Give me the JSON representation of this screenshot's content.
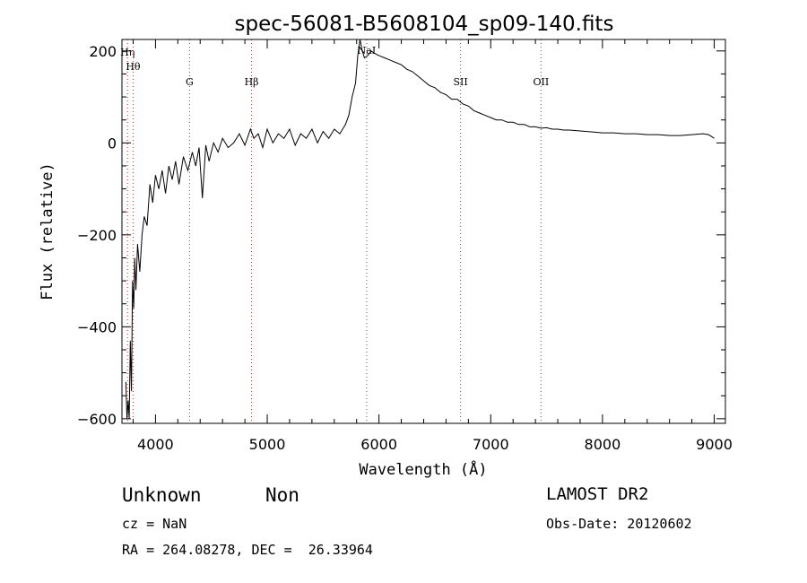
{
  "chart_data": {
    "type": "line",
    "title": "spec-56081-B5608104_sp09-140.fits",
    "xlabel": "Wavelength (Å)",
    "ylabel": "Flux (relative)",
    "xlim": [
      3700,
      9100
    ],
    "ylim": [
      -610,
      225
    ],
    "xticks": [
      4000,
      5000,
      6000,
      7000,
      8000,
      9000
    ],
    "yticks": [
      -600,
      -400,
      -200,
      0,
      200
    ],
    "grid": false,
    "line_color": "#000000",
    "marker_color": "#b03030",
    "series": [
      {
        "x": [
          3735,
          3745,
          3755,
          3765,
          3775,
          3785,
          3795,
          3805,
          3815,
          3825,
          3840,
          3860,
          3880,
          3900,
          3925,
          3950,
          3975,
          4000,
          4030,
          4060,
          4090,
          4120,
          4150,
          4180,
          4210,
          4250,
          4290,
          4330,
          4360,
          4390,
          4420,
          4450,
          4480,
          4520,
          4560,
          4600,
          4650,
          4700,
          4750,
          4800,
          4850,
          4880,
          4920,
          4960,
          5000,
          5050,
          5100,
          5150,
          5200,
          5250,
          5300,
          5350,
          5400,
          5450,
          5500,
          5550,
          5600,
          5650,
          5700,
          5730,
          5760,
          5790,
          5810,
          5830,
          5850,
          5870,
          5900,
          5930,
          5960,
          6000,
          6050,
          6100,
          6150,
          6200,
          6250,
          6300,
          6350,
          6400,
          6450,
          6500,
          6550,
          6600,
          6650,
          6700,
          6750,
          6800,
          6850,
          6900,
          6950,
          7000,
          7050,
          7100,
          7150,
          7200,
          7250,
          7300,
          7350,
          7400,
          7450,
          7500,
          7550,
          7600,
          7650,
          7700,
          7800,
          7900,
          8000,
          8100,
          8200,
          8300,
          8400,
          8500,
          8600,
          8700,
          8800,
          8900,
          8950,
          9000
        ],
        "y": [
          -520,
          -600,
          -560,
          -600,
          -430,
          -540,
          -300,
          -360,
          -250,
          -320,
          -220,
          -280,
          -200,
          -160,
          -180,
          -90,
          -130,
          -70,
          -100,
          -60,
          -110,
          -50,
          -80,
          -40,
          -90,
          -30,
          -60,
          -20,
          -50,
          -10,
          -120,
          -5,
          -40,
          0,
          -20,
          10,
          -10,
          0,
          20,
          -5,
          30,
          10,
          20,
          -10,
          30,
          0,
          20,
          10,
          30,
          -5,
          20,
          10,
          30,
          0,
          25,
          10,
          30,
          20,
          40,
          60,
          100,
          130,
          190,
          225,
          200,
          185,
          190,
          200,
          195,
          190,
          185,
          180,
          175,
          170,
          160,
          155,
          145,
          135,
          125,
          120,
          110,
          105,
          95,
          95,
          85,
          80,
          70,
          65,
          60,
          55,
          50,
          50,
          45,
          45,
          40,
          40,
          35,
          35,
          32,
          33,
          30,
          30,
          28,
          28,
          26,
          24,
          22,
          22,
          20,
          20,
          18,
          18,
          16,
          16,
          18,
          20,
          18,
          10
        ]
      }
    ],
    "annotations": [
      {
        "x": 3750,
        "label": "Hη"
      },
      {
        "x": 3800,
        "label": "Hθ"
      },
      {
        "x": 4305,
        "label": "G"
      },
      {
        "x": 4860,
        "label": "Hβ"
      },
      {
        "x": 5890,
        "label": "NaI"
      },
      {
        "x": 6730,
        "label": "SII"
      },
      {
        "x": 7450,
        "label": "OII"
      }
    ]
  },
  "footer": {
    "object_class": "Unknown",
    "subclass": "Non",
    "survey": "LAMOST DR2",
    "redshift": "cz = NaN",
    "obs_date": "Obs-Date: 20120602",
    "coords": "RA = 264.08278, DEC =  26.33964"
  }
}
